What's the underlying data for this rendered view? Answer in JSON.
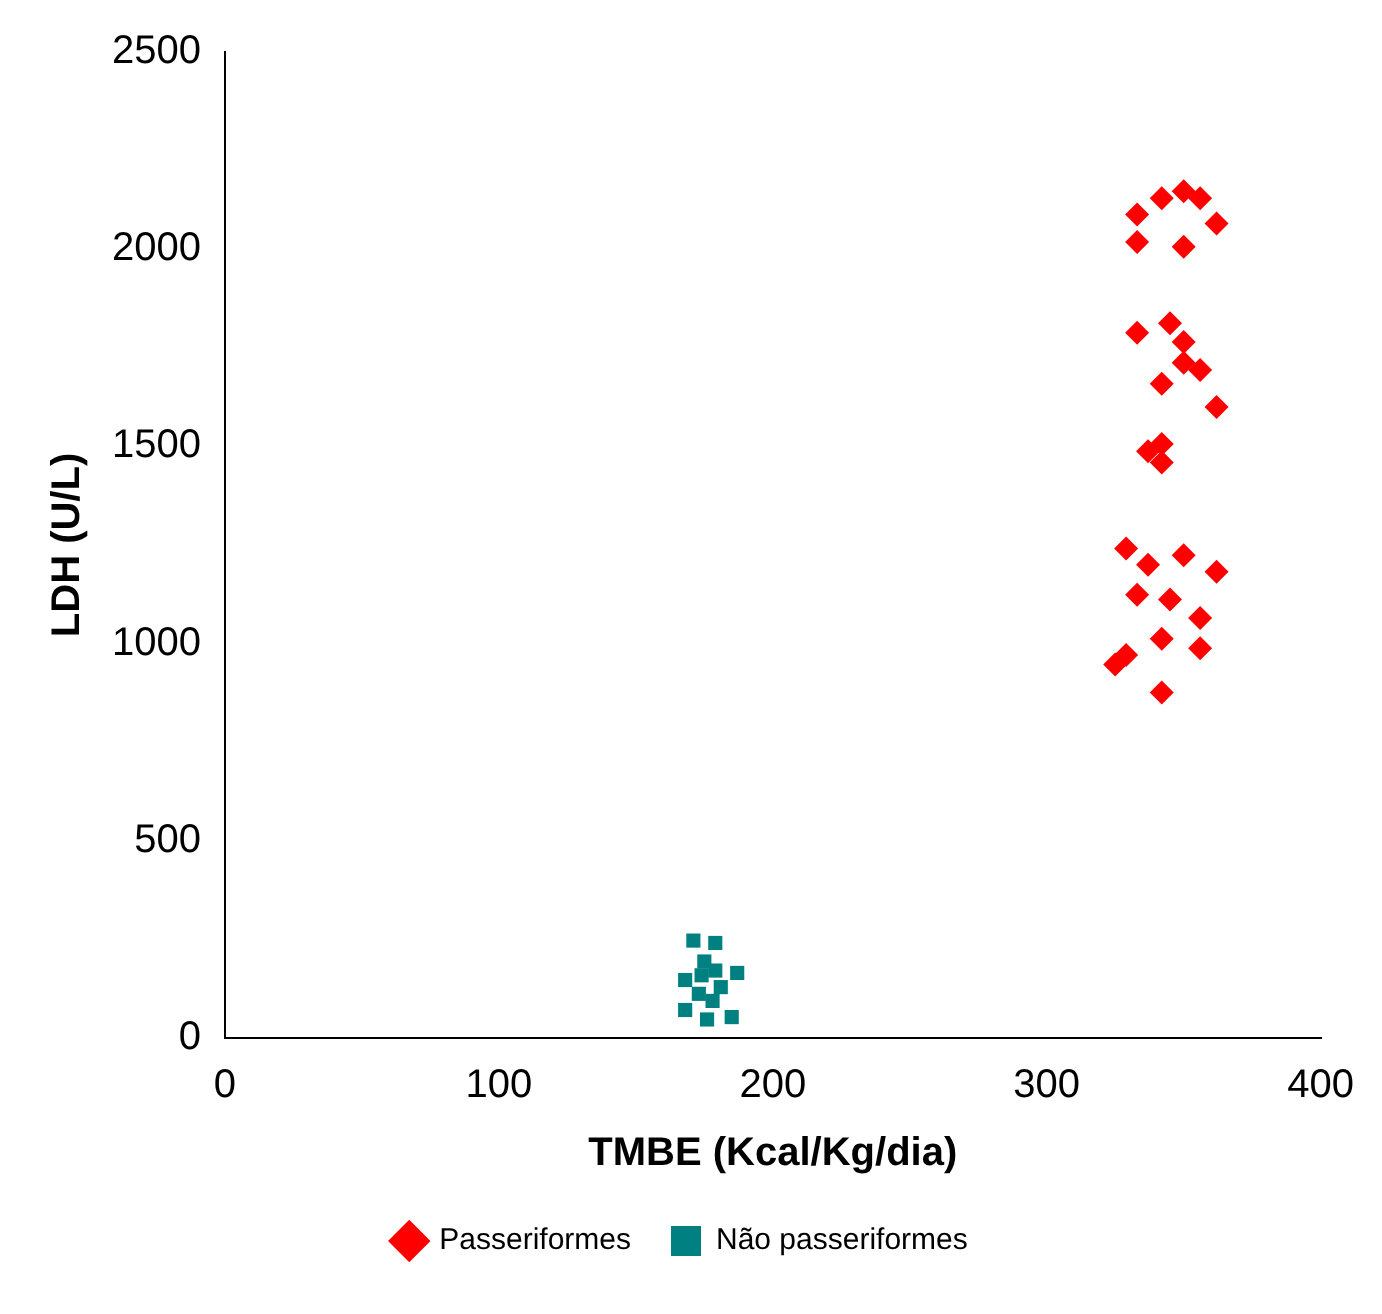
{
  "chart_data": {
    "type": "scatter",
    "xlabel": "TMBE (Kcal/Kg/dia)",
    "ylabel": "LDH (U/L)",
    "xlim": [
      0,
      400
    ],
    "xticks": [
      0,
      100,
      200,
      300,
      400
    ],
    "ylim": [
      0,
      2500
    ],
    "yticks": [
      0,
      500,
      1000,
      1500,
      2000,
      2500
    ],
    "grid": false,
    "legend": "bottom",
    "series": [
      {
        "name": "Passeriformes",
        "color": "#ff0000",
        "marker": "diamond",
        "x": [
          333,
          342,
          350,
          356,
          333,
          350,
          362,
          333,
          345,
          350,
          350,
          356,
          342,
          362,
          337,
          342,
          342,
          329,
          337,
          350,
          362,
          333,
          345,
          356,
          342,
          356,
          329,
          325,
          342
        ],
        "values": [
          2088,
          2129,
          2147,
          2129,
          2018,
          2006,
          2065,
          1788,
          1812,
          1765,
          1712,
          1694,
          1659,
          1600,
          1488,
          1506,
          1459,
          1241,
          1200,
          1224,
          1182,
          1124,
          1112,
          1065,
          1012,
          988,
          971,
          947,
          876
        ]
      },
      {
        "name": "Não passeriformes",
        "color": "#008080",
        "marker": "square",
        "x": [
          171,
          179,
          175,
          187,
          168,
          181,
          173,
          178,
          168,
          185,
          176,
          179,
          174
        ],
        "values": [
          247,
          241,
          194,
          165,
          147,
          129,
          112,
          94,
          71,
          53,
          47,
          171,
          159
        ]
      }
    ]
  }
}
